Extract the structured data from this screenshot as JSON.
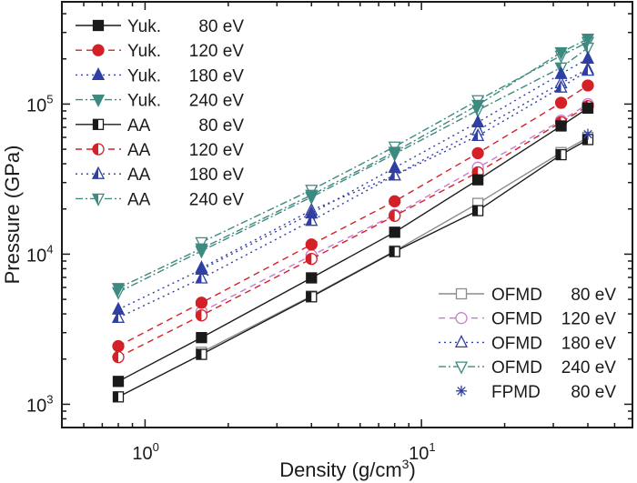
{
  "chart_data": {
    "type": "line",
    "title": "",
    "xlabel": "Density (g/cm",
    "xlabel_sup": "3",
    "xlabel_end": ")",
    "ylabel": "Pressure (GPa)",
    "xscale": "log",
    "yscale": "log",
    "xlim": [
      0.5,
      58
    ],
    "ylim": [
      700,
      480000
    ],
    "grid": false,
    "x_ticks": [
      {
        "value": 1,
        "base": "10",
        "exp": "0"
      },
      {
        "value": 10,
        "base": "10",
        "exp": "1"
      }
    ],
    "y_ticks": [
      {
        "value": 1000,
        "base": "10",
        "exp": "3"
      },
      {
        "value": 10000,
        "base": "10",
        "exp": "4"
      },
      {
        "value": 100000,
        "base": "10",
        "exp": "5"
      }
    ],
    "x": [
      0.8,
      1.6,
      4,
      8,
      16,
      32,
      40
    ],
    "series": [
      {
        "name": "Yuk.",
        "energy": "80 eV",
        "color": "#1a1a1a",
        "dash": "solid",
        "marker": "square",
        "fill": "full",
        "values": [
          1420,
          2780,
          6950,
          14000,
          31300,
          71500,
          94000
        ]
      },
      {
        "name": "Yuk.",
        "energy": "120 eV",
        "color": "#d42027",
        "dash": "dash",
        "marker": "circle",
        "fill": "full",
        "values": [
          2440,
          4750,
          11600,
          22500,
          47100,
          102000,
          133000
        ]
      },
      {
        "name": "Yuk.",
        "energy": "180 eV",
        "color": "#2f3fa3",
        "dash": "dot",
        "marker": "triangle-up",
        "fill": "full",
        "values": [
          4280,
          7900,
          18700,
          37700,
          75700,
          159000,
          201000
        ]
      },
      {
        "name": "Yuk.",
        "energy": "240 eV",
        "color": "#3d8a80",
        "dash": "dashdot",
        "marker": "triangle-down",
        "fill": "full",
        "values": [
          5940,
          10900,
          24800,
          48000,
          98600,
          221000,
          272000
        ]
      },
      {
        "name": "AA",
        "energy": "80 eV",
        "color": "#1a1a1a",
        "dash": "solid",
        "marker": "square",
        "fill": "half",
        "values": [
          1120,
          2150,
          5200,
          10400,
          19500,
          46000,
          58000
        ]
      },
      {
        "name": "AA",
        "energy": "120 eV",
        "color": "#d42027",
        "dash": "dash",
        "marker": "circle",
        "fill": "half",
        "values": [
          2060,
          3910,
          9300,
          18000,
          35100,
          75700,
          97000
        ]
      },
      {
        "name": "AA",
        "energy": "180 eV",
        "color": "#2f3fa3",
        "dash": "dot",
        "marker": "triangle-up",
        "fill": "half",
        "values": [
          3770,
          6900,
          16700,
          33500,
          61400,
          129000,
          167000
        ]
      },
      {
        "name": "AA",
        "energy": "240 eV",
        "color": "#3d8a80",
        "dash": "dashdot",
        "marker": "triangle-down",
        "fill": "half",
        "values": [
          5580,
          10500,
          24000,
          46500,
          91000,
          175000,
          237000
        ]
      },
      {
        "name": "OFMD",
        "energy": "80 eV",
        "color": "#8c8c8c",
        "dash": "solid",
        "marker": "square",
        "fill": "none",
        "x": [
          1.6,
          4,
          8,
          16,
          32,
          40
        ],
        "values": [
          2220,
          5260,
          10500,
          21800,
          47500,
          60000
        ]
      },
      {
        "name": "OFMD",
        "energy": "120 eV",
        "color": "#c77ccf",
        "dash": "dash",
        "marker": "circle",
        "fill": "none",
        "x": [
          1.6,
          4,
          8,
          16,
          32,
          40
        ],
        "values": [
          4130,
          9800,
          18300,
          37700,
          77500,
          100000
        ]
      },
      {
        "name": "OFMD",
        "energy": "180 eV",
        "color": "#2f3fa3",
        "dash": "dot",
        "marker": "triangle-up",
        "fill": "none",
        "x": [
          1.6,
          4,
          8,
          16,
          32,
          40
        ],
        "values": [
          8100,
          19600,
          33500,
          67000,
          138000,
          171000
        ]
      },
      {
        "name": "OFMD",
        "energy": "240 eV",
        "color": "#3d8a80",
        "dash": "dashdot",
        "marker": "triangle-down",
        "fill": "none",
        "x": [
          1.6,
          4,
          8,
          16,
          32,
          40
        ],
        "values": [
          12000,
          26800,
          52000,
          106000,
          210000,
          259000
        ]
      },
      {
        "name": "FPMD",
        "energy": "80 eV",
        "color": "#2f3fa3",
        "dash": "none",
        "marker": "asterisk",
        "fill": "none",
        "x": [
          40
        ],
        "values": [
          63000
        ]
      }
    ],
    "legends": [
      {
        "placement": "top-left",
        "series_indices": [
          0,
          1,
          2,
          3,
          4,
          5,
          6,
          7
        ]
      },
      {
        "placement": "bottom-right",
        "series_indices": [
          8,
          9,
          10,
          11,
          12
        ]
      }
    ]
  }
}
